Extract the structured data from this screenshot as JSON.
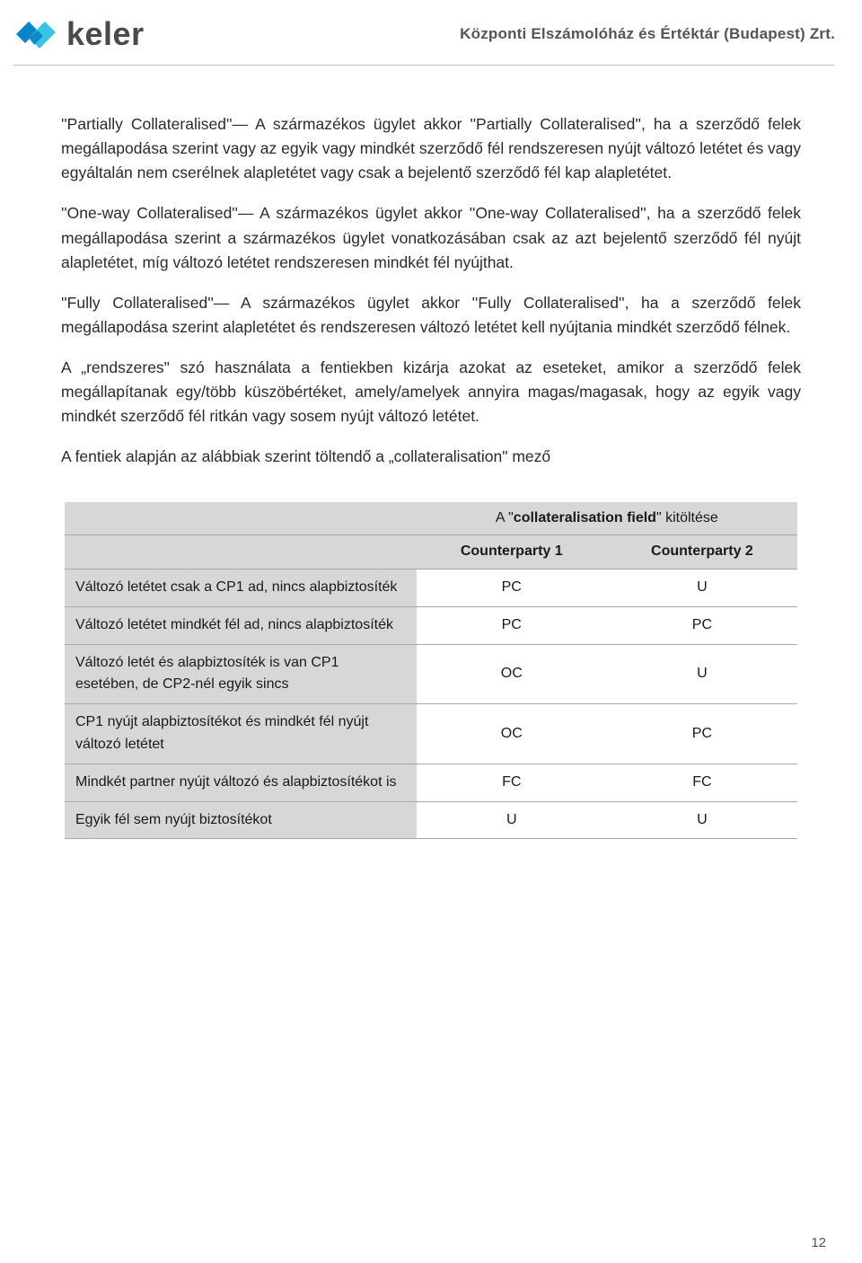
{
  "header": {
    "logo_text": "keler",
    "org": "Központi Elszámolóház és Értéktár (Budapest) Zrt.",
    "logo_colors": {
      "dark": "#0a84c6",
      "light": "#39c4e6"
    }
  },
  "paragraphs": {
    "p1": "''Partially Collateralised''— A származékos ügylet akkor ''Partially Collateralised'', ha a szerződő felek megállapodása szerint vagy az egyik vagy mindkét szerződő fél rendszeresen nyújt változó letétet és vagy egyáltalán nem cserélnek alapletétet vagy csak a bejelentő szerződő fél kap alapletétet.",
    "p2": "''One-way Collateralised''— A származékos ügylet akkor ''One-way Collateralised'', ha a szerződő felek megállapodása szerint a származékos ügylet vonatkozásában csak az azt bejelentő szerződő fél nyújt alapletétet, míg változó letétet rendszeresen mindkét fél nyújthat.",
    "p3": "''Fully Collateralised''— A származékos ügylet akkor ''Fully Collateralised'', ha a szerződő felek megállapodása szerint alapletétet és rendszeresen változó letétet kell nyújtania mindkét szerződő félnek.",
    "p4": "A „rendszeres\" szó használata a fentiekben kizárja azokat az eseteket, amikor a szerződő felek megállapítanak egy/több küszöbértéket, amely/amelyek annyira magas/magasak, hogy az egyik vagy mindkét szerződő fél ritkán vagy sosem nyújt változó letétet.",
    "p5": "A fentiek alapján az alábbiak szerint töltendő a „collateralisation\" mező"
  },
  "table": {
    "title_prefix": "A \"",
    "title_bold": "collateralisation field",
    "title_suffix": "\" kitöltése",
    "col1": "Counterparty 1",
    "col2": "Counterparty 2",
    "rows": [
      {
        "desc": "Változó letétet csak a CP1 ad, nincs alapbiztosíték",
        "v1": "PC",
        "v2": "U"
      },
      {
        "desc": "Változó letétet mindkét fél ad, nincs alapbiztosíték",
        "v1": "PC",
        "v2": "PC"
      },
      {
        "desc": "Változó letét és alapbiztosíték is van CP1 esetében, de CP2-nél egyik sincs",
        "v1": "OC",
        "v2": "U"
      },
      {
        "desc": "CP1 nyújt alapbiztosítékot és mindkét fél nyújt változó letétet",
        "v1": "OC",
        "v2": "PC"
      },
      {
        "desc": "Mindkét partner nyújt változó és alapbiztosítékot is",
        "v1": "FC",
        "v2": "FC"
      },
      {
        "desc": "Egyik fél sem nyújt biztosítékot",
        "v1": "U",
        "v2": "U"
      }
    ]
  },
  "page_number": "12"
}
